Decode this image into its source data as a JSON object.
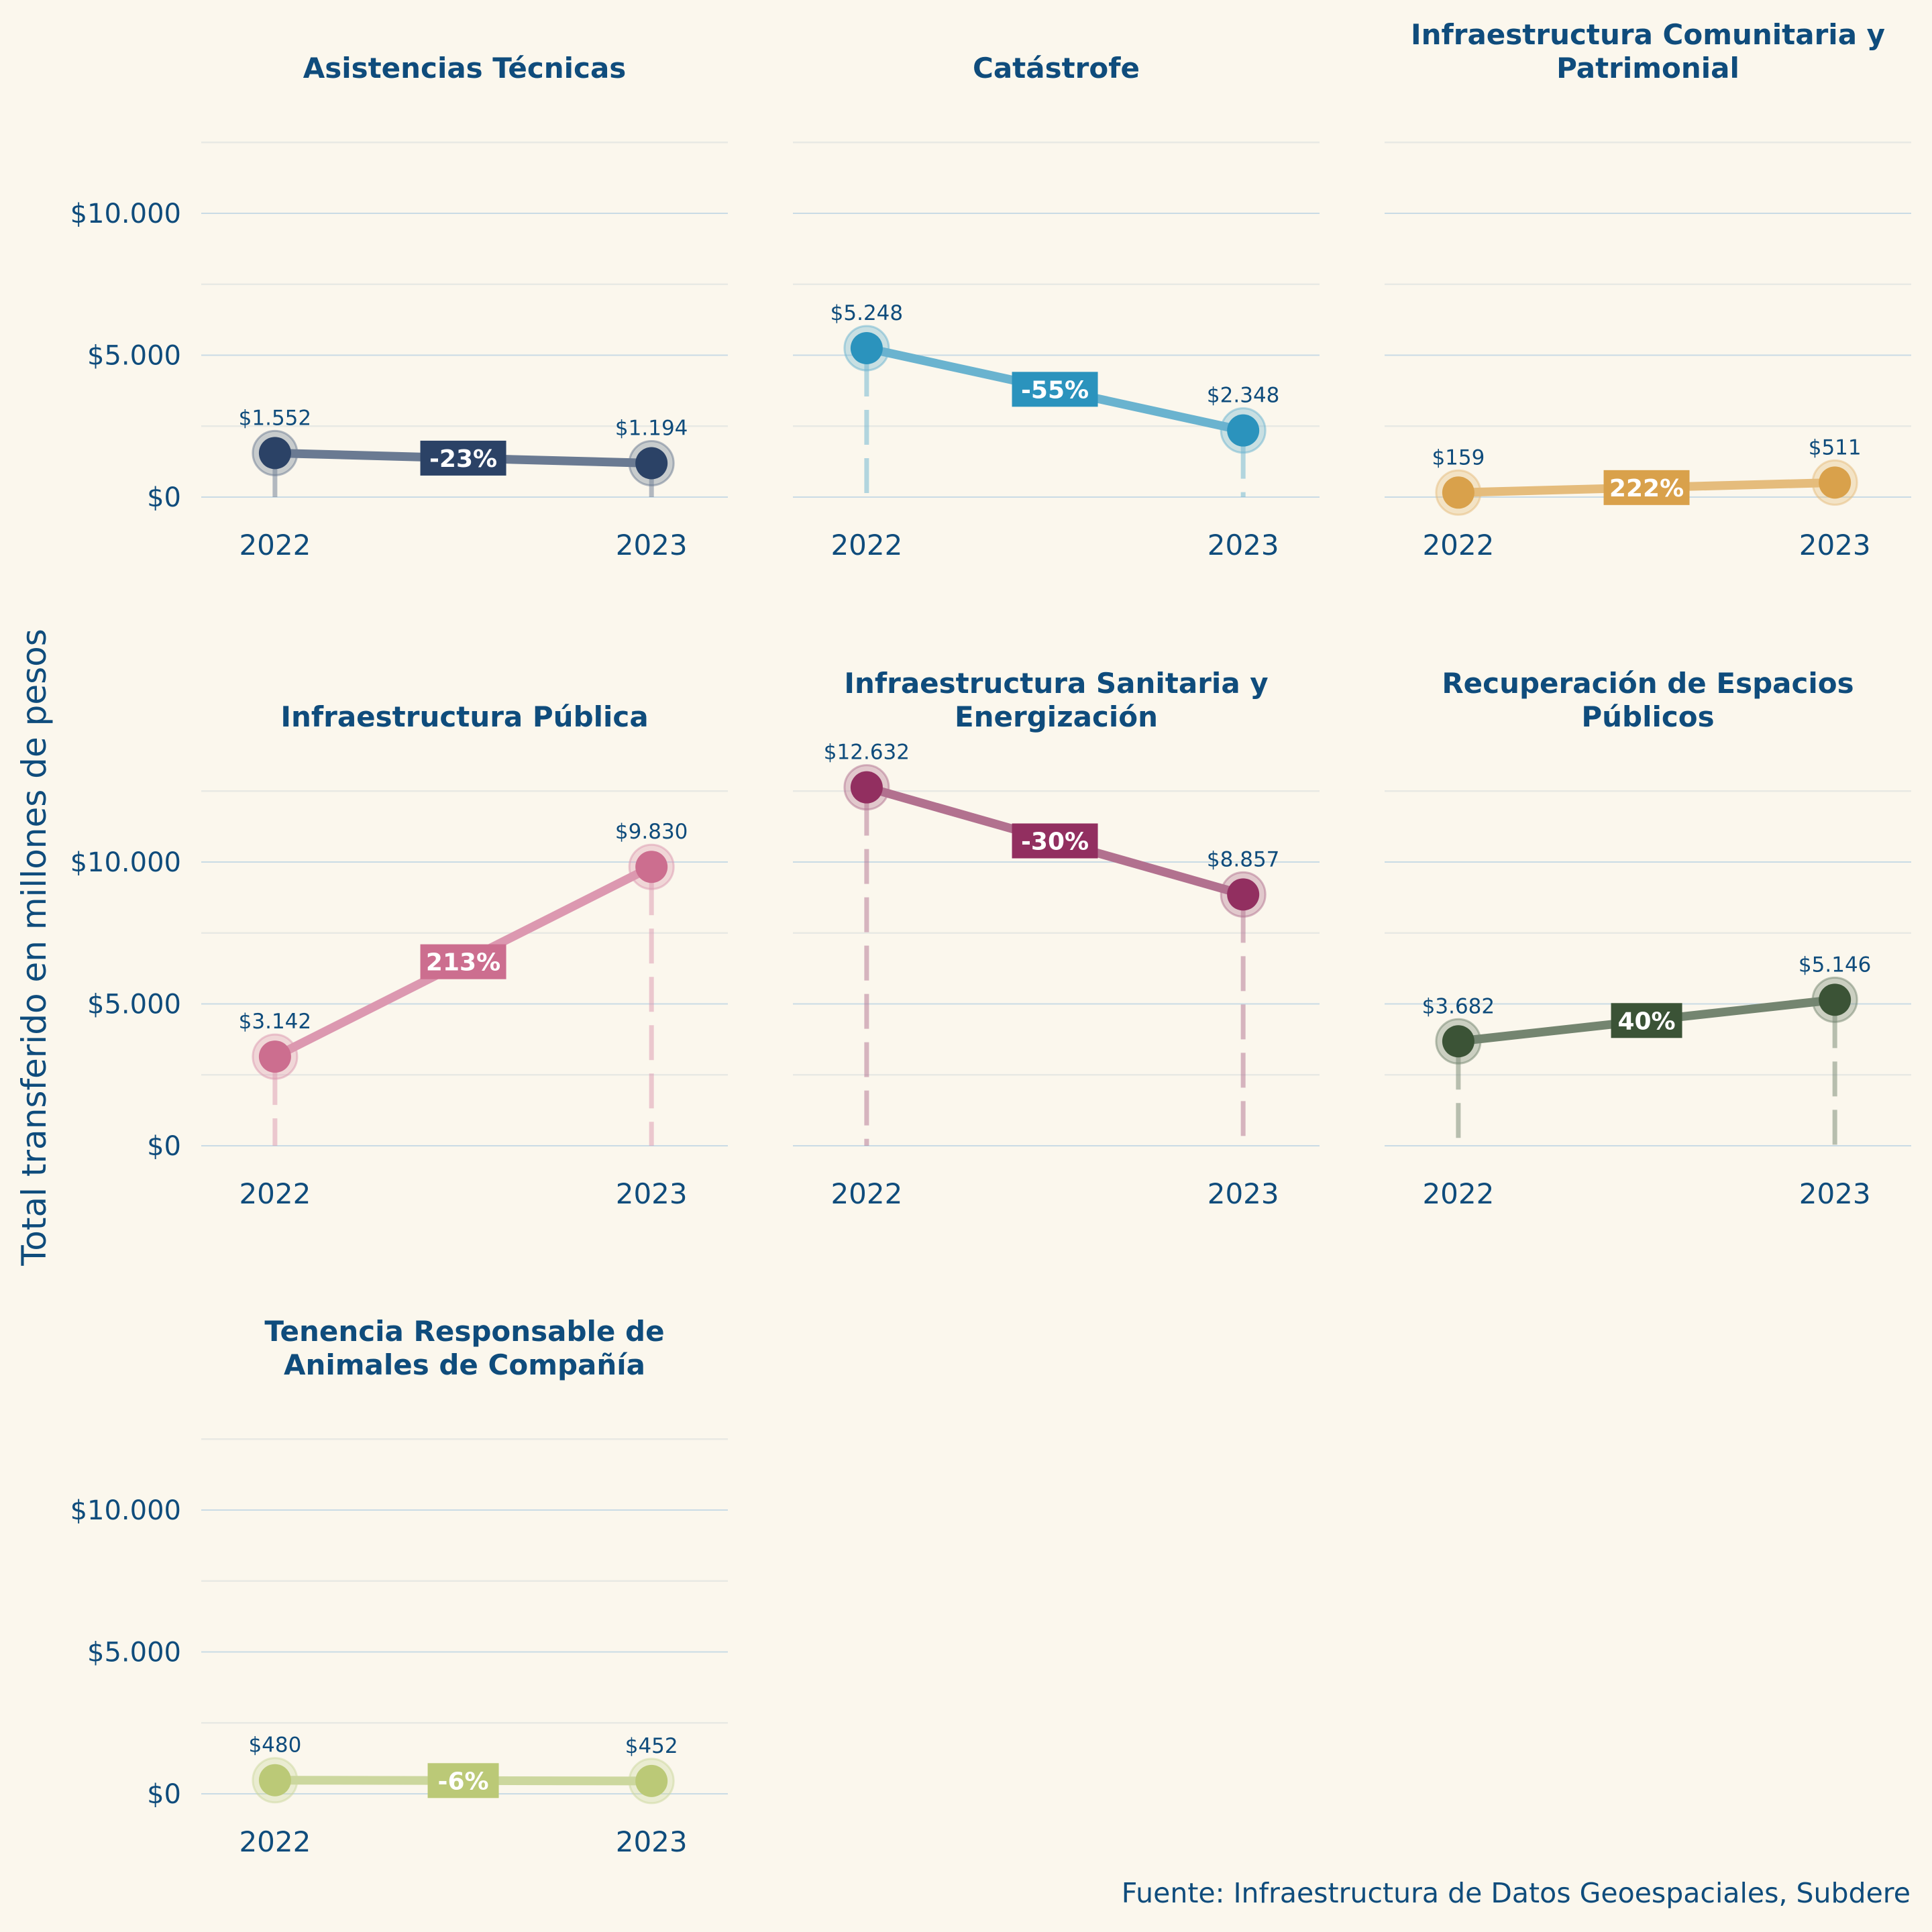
{
  "chart_data": {
    "type": "line",
    "layout": "small-multiples",
    "ylabel": "Total transferido en millones de pesos",
    "caption": "Fuente: Infraestructura de Datos Geoespaciales, Subdere",
    "x": [
      "2022",
      "2023"
    ],
    "ylim": [
      0,
      12500
    ],
    "yticks": [
      0,
      5000,
      10000
    ],
    "ytick_labels": [
      "$0",
      "$5.000",
      "$10.000"
    ],
    "grid": true,
    "panels": [
      {
        "title": [
          "Asistencias Técnicas"
        ],
        "values": [
          1552,
          1194
        ],
        "value_labels": [
          "$1.552",
          "$1.194"
        ],
        "change_label": "-23%",
        "color": "#2b4266",
        "line_color": "#6a7a92",
        "show_y_axis": true
      },
      {
        "title": [
          "Catástrofe"
        ],
        "values": [
          5248,
          2348
        ],
        "value_labels": [
          "$5.248",
          "$2.348"
        ],
        "change_label": "-55%",
        "color": "#2b93bd",
        "line_color": "#6ab3cf",
        "show_y_axis": false
      },
      {
        "title": [
          "Infraestructura Comunitaria y",
          "Patrimonial"
        ],
        "values": [
          159,
          511
        ],
        "value_labels": [
          "$159",
          "$511"
        ],
        "change_label": "222%",
        "color": "#d9a14b",
        "line_color": "#e5bc7c",
        "show_y_axis": false
      },
      {
        "title": [
          "Infraestructura Pública"
        ],
        "values": [
          3142,
          9830
        ],
        "value_labels": [
          "$3.142",
          "$9.830"
        ],
        "change_label": "213%",
        "color": "#cc6e8f",
        "line_color": "#dc98b0",
        "show_y_axis": true
      },
      {
        "title": [
          "Infraestructura Sanitaria y",
          "Energización"
        ],
        "values": [
          12632,
          8857
        ],
        "value_labels": [
          "$12.632",
          "$8.857"
        ],
        "change_label": "-30%",
        "color": "#922f60",
        "line_color": "#b2718f",
        "show_y_axis": false
      },
      {
        "title": [
          "Recuperación de Espacios",
          "Públicos"
        ],
        "values": [
          3682,
          5146
        ],
        "value_labels": [
          "$3.682",
          "$5.146"
        ],
        "change_label": "40%",
        "color": "#3b5336",
        "line_color": "#748570",
        "show_y_axis": false
      },
      {
        "title": [
          "Tenencia Responsable de",
          "Animales de Compañía"
        ],
        "values": [
          480,
          452
        ],
        "value_labels": [
          "$480",
          "$452"
        ],
        "change_label": "-6%",
        "color": "#bbc977",
        "line_color": "#ccd79e",
        "show_y_axis": true
      }
    ]
  },
  "theme": {
    "background": "#fbf7ed",
    "text_color": "#0f4c7c",
    "major_grid": "#c9dbe5",
    "minor_grid": "#e8e9e4"
  }
}
